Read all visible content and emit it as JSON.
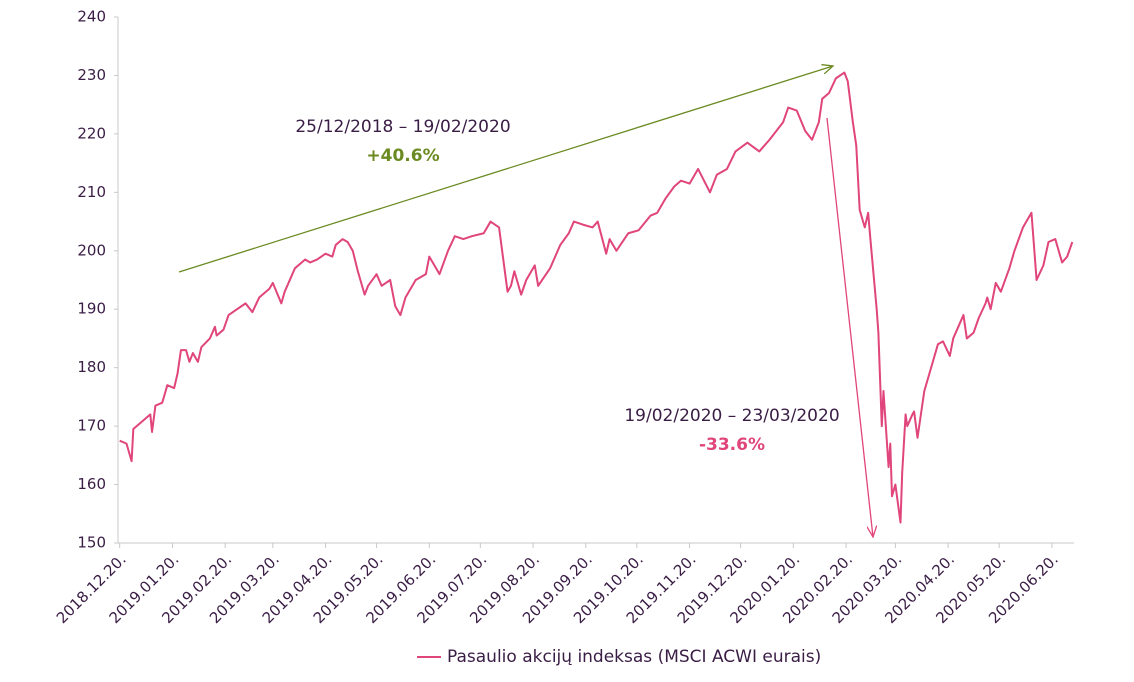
{
  "chart_data": {
    "type": "line",
    "x": [
      "2018-12-20",
      "2018-12-24",
      "2018-12-27",
      "2018-12-28",
      "2019-01-03",
      "2019-01-07",
      "2019-01-08",
      "2019-01-10",
      "2019-01-14",
      "2019-01-17",
      "2019-01-21",
      "2019-01-23",
      "2019-01-25",
      "2019-01-28",
      "2019-01-30",
      "2019-02-01",
      "2019-02-04",
      "2019-02-06",
      "2019-02-11",
      "2019-02-14",
      "2019-02-15",
      "2019-02-19",
      "2019-02-22",
      "2019-02-27",
      "2019-03-04",
      "2019-03-08",
      "2019-03-12",
      "2019-03-18",
      "2019-03-20",
      "2019-03-25",
      "2019-03-27",
      "2019-04-02",
      "2019-04-08",
      "2019-04-11",
      "2019-04-15",
      "2019-04-20",
      "2019-04-24",
      "2019-04-26",
      "2019-04-30",
      "2019-05-03",
      "2019-05-06",
      "2019-05-09",
      "2019-05-13",
      "2019-05-15",
      "2019-05-20",
      "2019-05-23",
      "2019-05-28",
      "2019-05-31",
      "2019-06-03",
      "2019-06-06",
      "2019-06-12",
      "2019-06-18",
      "2019-06-20",
      "2019-06-26",
      "2019-07-01",
      "2019-07-05",
      "2019-07-10",
      "2019-07-15",
      "2019-07-22",
      "2019-07-26",
      "2019-07-31",
      "2019-08-05",
      "2019-08-07",
      "2019-08-09",
      "2019-08-13",
      "2019-08-16",
      "2019-08-21",
      "2019-08-23",
      "2019-08-30",
      "2019-09-05",
      "2019-09-10",
      "2019-09-13",
      "2019-09-18",
      "2019-09-24",
      "2019-09-27",
      "2019-10-02",
      "2019-10-04",
      "2019-10-08",
      "2019-10-15",
      "2019-10-21",
      "2019-10-28",
      "2019-11-01",
      "2019-11-06",
      "2019-11-11",
      "2019-11-15",
      "2019-11-20",
      "2019-11-25",
      "2019-12-02",
      "2019-12-06",
      "2019-12-12",
      "2019-12-17",
      "2019-12-24",
      "2019-12-31",
      "2020-01-06",
      "2020-01-14",
      "2020-01-17",
      "2020-01-22",
      "2020-01-27",
      "2020-01-31",
      "2020-02-04",
      "2020-02-06",
      "2020-02-10",
      "2020-02-14",
      "2020-02-19",
      "2020-02-21",
      "2020-02-24",
      "2020-02-26",
      "2020-02-28",
      "2020-03-02",
      "2020-03-04",
      "2020-03-05",
      "2020-03-09",
      "2020-03-10",
      "2020-03-12",
      "2020-03-13",
      "2020-03-16",
      "2020-03-17",
      "2020-03-18",
      "2020-03-20",
      "2020-03-23",
      "2020-03-24",
      "2020-03-26",
      "2020-03-27",
      "2020-03-30",
      "2020-03-31",
      "2020-04-02",
      "2020-04-06",
      "2020-04-08",
      "2020-04-14",
      "2020-04-17",
      "2020-04-21",
      "2020-04-23",
      "2020-04-29",
      "2020-05-01",
      "2020-05-05",
      "2020-05-08",
      "2020-05-12",
      "2020-05-13",
      "2020-05-15",
      "2020-05-18",
      "2020-05-21",
      "2020-05-26",
      "2020-05-29",
      "2020-06-03",
      "2020-06-08",
      "2020-06-11",
      "2020-06-15",
      "2020-06-18",
      "2020-06-22",
      "2020-06-24",
      "2020-06-26",
      "2020-06-29",
      "2020-07-02"
    ],
    "series": [
      {
        "name": "Pasaulio akcijų indeksas (MSCI ACWI eurais)",
        "color": "#e0457b",
        "values": [
          167.5,
          167,
          164,
          169.5,
          171,
          172,
          169,
          173.5,
          174,
          177,
          176.5,
          179,
          183,
          183,
          181,
          182.5,
          181,
          183.5,
          185,
          187,
          185.5,
          186.5,
          189,
          190,
          191,
          189.5,
          192,
          193.5,
          194.5,
          191,
          193,
          197,
          198.5,
          198,
          198.5,
          199.5,
          199,
          201,
          202,
          201.5,
          200,
          196.5,
          192.5,
          194,
          196,
          194,
          195,
          190.5,
          189,
          192,
          195,
          196,
          199,
          196,
          200,
          202.5,
          202,
          202.5,
          203,
          205,
          204,
          193,
          194,
          196.5,
          192.5,
          195,
          197.5,
          194,
          197,
          201,
          203,
          205,
          204.5,
          204,
          205,
          199.5,
          202,
          200,
          203,
          203.5,
          206,
          206.5,
          209,
          211,
          212,
          211.5,
          214,
          210,
          213,
          214,
          217,
          218.5,
          217,
          219,
          222,
          224.5,
          224,
          220.5,
          219,
          222,
          226,
          227,
          229.5,
          230.5,
          229,
          222,
          218,
          207,
          204,
          206.5,
          203,
          190,
          186,
          170,
          176,
          163,
          167,
          158,
          160,
          153.5,
          162,
          172,
          170,
          172,
          172.5,
          168,
          176,
          178,
          184,
          184.5,
          182,
          185,
          189,
          185,
          186,
          188.5,
          191,
          192,
          190,
          194.5,
          193,
          197,
          200,
          204,
          206.5,
          195,
          197.5,
          201.5,
          202,
          200,
          198,
          199,
          201.5
        ]
      }
    ],
    "xlim": [
      "2018-12-19",
      "2020-07-03"
    ],
    "xticks": [
      {
        "value": "2018-12-20",
        "label": "2018.12.20."
      },
      {
        "value": "2019-01-20",
        "label": "2019.01.20."
      },
      {
        "value": "2019-02-20",
        "label": "2019.02.20."
      },
      {
        "value": "2019-03-20",
        "label": "2019.03.20."
      },
      {
        "value": "2019-04-20",
        "label": "2019.04.20."
      },
      {
        "value": "2019-05-20",
        "label": "2019.05.20."
      },
      {
        "value": "2019-06-20",
        "label": "2019.06.20."
      },
      {
        "value": "2019-07-20",
        "label": "2019.07.20."
      },
      {
        "value": "2019-08-20",
        "label": "2019.08.20."
      },
      {
        "value": "2019-09-20",
        "label": "2019.09.20."
      },
      {
        "value": "2019-10-20",
        "label": "2019.10.20."
      },
      {
        "value": "2019-11-20",
        "label": "2019.11.20."
      },
      {
        "value": "2019-12-20",
        "label": "2019.12.20."
      },
      {
        "value": "2020-01-20",
        "label": "2020.01.20."
      },
      {
        "value": "2020-02-20",
        "label": "2020.02.20."
      },
      {
        "value": "2020-03-20",
        "label": "2020.03.20."
      },
      {
        "value": "2020-04-20",
        "label": "2020.04.20."
      },
      {
        "value": "2020-05-20",
        "label": "2020.05.20."
      },
      {
        "value": "2020-06-20",
        "label": "2020.06.20."
      }
    ],
    "ylim": [
      150,
      240
    ],
    "yticks": [
      150,
      160,
      170,
      180,
      190,
      200,
      210,
      220,
      230,
      240
    ],
    "annotations": [
      {
        "text": "25/12/2018 – 19/02/2020",
        "change": "+40.6%"
      },
      {
        "text": "19/02/2020 – 23/03/2020",
        "change": "-33.6%"
      }
    ]
  }
}
